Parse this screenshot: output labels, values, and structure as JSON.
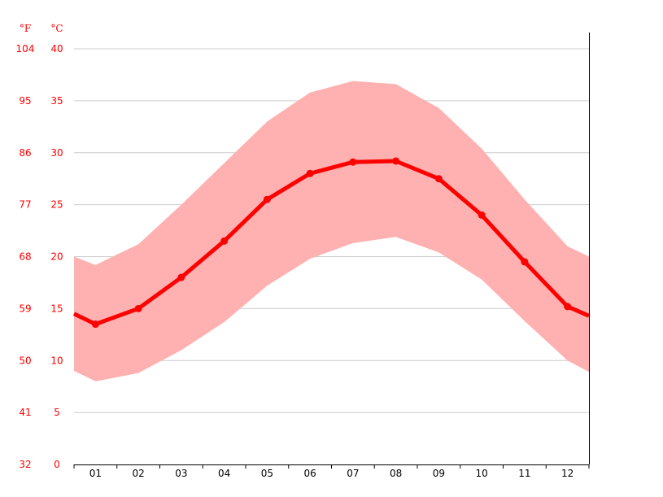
{
  "colors": {
    "mean_line": "#ff0000",
    "range_band": "#ffb1b1",
    "axis_text": "#ff0000",
    "grid": "#cccccc",
    "axis": "#000000"
  },
  "chart_data": {
    "type": "line",
    "title": "",
    "xlabel": "",
    "ylabel": "",
    "unit_left": "°F",
    "unit_right": "°C",
    "categories": [
      "01",
      "02",
      "03",
      "04",
      "05",
      "06",
      "07",
      "08",
      "09",
      "10",
      "11",
      "12"
    ],
    "ylim": [
      0,
      40
    ],
    "yticks_c": [
      "0",
      "5",
      "10",
      "15",
      "20",
      "25",
      "30",
      "35",
      "40"
    ],
    "yticks_f": [
      "32",
      "41",
      "50",
      "59",
      "68",
      "77",
      "86",
      "95",
      "104"
    ],
    "grid": true,
    "series": [
      {
        "values": [
          13.5,
          15.0,
          18.0,
          21.5,
          25.5,
          28.0,
          29.1,
          29.2,
          27.5,
          24.0,
          19.5,
          15.2
        ]
      },
      {
        "values": [
          19.2,
          21.2,
          25.0,
          29.0,
          33.0,
          35.8,
          36.9,
          36.6,
          34.3,
          30.4,
          25.5,
          21.0
        ]
      },
      {
        "values": [
          8.0,
          8.8,
          11.0,
          13.7,
          17.2,
          19.8,
          21.3,
          21.9,
          20.4,
          17.8,
          13.8,
          10.0
        ]
      }
    ],
    "edge_values": {
      "mean": [
        14.5,
        14.3
      ],
      "max": [
        20.0,
        20.0
      ],
      "min": [
        9.0,
        8.9
      ]
    }
  }
}
